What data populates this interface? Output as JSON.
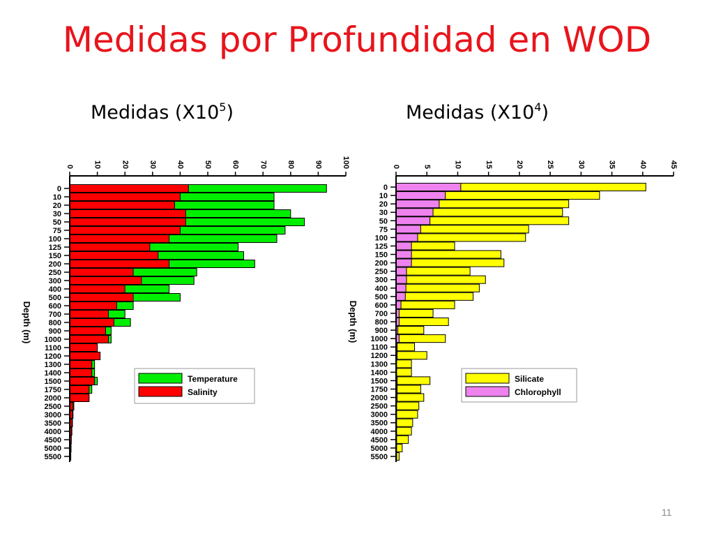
{
  "slide": {
    "title": "Medidas por Profundidad en WOD",
    "page_number": "11",
    "left_caption": {
      "text": "Medidas (X10",
      "exp": "5",
      "close": ")"
    },
    "right_caption": {
      "text": "Medidas (X10",
      "exp": "4",
      "close": ")"
    }
  },
  "chart_data": [
    {
      "type": "bar",
      "orientation": "horizontal",
      "ylabel": "Depth (m)",
      "xlim": [
        0,
        100
      ],
      "x_ticks": [
        0,
        10,
        20,
        30,
        40,
        50,
        60,
        70,
        80,
        90,
        100
      ],
      "categories": [
        "0",
        "10",
        "20",
        "30",
        "50",
        "75",
        "100",
        "125",
        "150",
        "200",
        "250",
        "300",
        "400",
        "500",
        "600",
        "700",
        "800",
        "900",
        "1000",
        "1100",
        "1200",
        "1300",
        "1400",
        "1500",
        "1750",
        "2000",
        "2500",
        "3000",
        "3500",
        "4000",
        "4500",
        "5000",
        "5500"
      ],
      "legend_position": "bottom-right",
      "series": [
        {
          "name": "Temperature",
          "color": "#00ee00",
          "values": [
            93,
            74,
            74,
            80,
            85,
            78,
            75,
            61,
            63,
            67,
            46,
            45,
            36,
            40,
            23,
            20,
            22,
            15,
            15,
            10,
            11,
            9,
            9,
            10,
            8,
            7,
            1.5,
            1.2,
            1,
            0.8,
            0.6,
            0.5,
            0.4
          ]
        },
        {
          "name": "Salinity",
          "color": "#ff0000",
          "values": [
            43,
            40,
            38,
            42,
            42,
            40,
            36,
            29,
            32,
            36,
            23,
            26,
            20,
            23,
            17,
            14,
            16,
            13,
            14,
            10,
            11,
            8,
            8,
            9,
            7,
            7,
            1.2,
            1,
            0.8,
            0.6,
            0.5,
            0.4,
            0.3
          ]
        }
      ]
    },
    {
      "type": "bar",
      "orientation": "horizontal",
      "ylabel": "Depth (m)",
      "xlim": [
        0,
        45
      ],
      "x_ticks": [
        0,
        5,
        10,
        15,
        20,
        25,
        30,
        35,
        40,
        45
      ],
      "categories": [
        "0",
        "10",
        "20",
        "30",
        "50",
        "75",
        "100",
        "125",
        "150",
        "200",
        "250",
        "300",
        "400",
        "500",
        "600",
        "700",
        "800",
        "900",
        "1000",
        "1100",
        "1200",
        "1300",
        "1400",
        "1500",
        "1750",
        "2000",
        "2500",
        "3000",
        "3500",
        "4000",
        "4500",
        "5000",
        "5500"
      ],
      "legend_position": "bottom-right",
      "series": [
        {
          "name": "Silicate",
          "color": "#ffff00",
          "values": [
            40.5,
            33,
            28,
            27,
            28,
            21.5,
            21,
            9.5,
            17,
            17.5,
            12,
            14.5,
            13.5,
            12.5,
            9.5,
            6,
            8.5,
            4.5,
            8,
            3,
            5,
            2.5,
            2.5,
            5.5,
            4,
            4.5,
            3.7,
            3.5,
            2.7,
            2.5,
            2,
            1,
            0.5
          ]
        },
        {
          "name": "Chlorophyll",
          "color": "#ee82ee",
          "values": [
            10.5,
            8,
            7,
            6,
            5.5,
            4,
            3.5,
            2.5,
            2.5,
            2.5,
            1.7,
            1.7,
            1.6,
            1.5,
            0.8,
            0.5,
            0.5,
            0.3,
            0.5,
            0.2,
            0.2,
            0.1,
            0.1,
            0.2,
            0.2,
            0.2,
            0.1,
            0.1,
            0.1,
            0.1,
            0.1,
            0.1,
            0.1
          ]
        }
      ]
    }
  ]
}
